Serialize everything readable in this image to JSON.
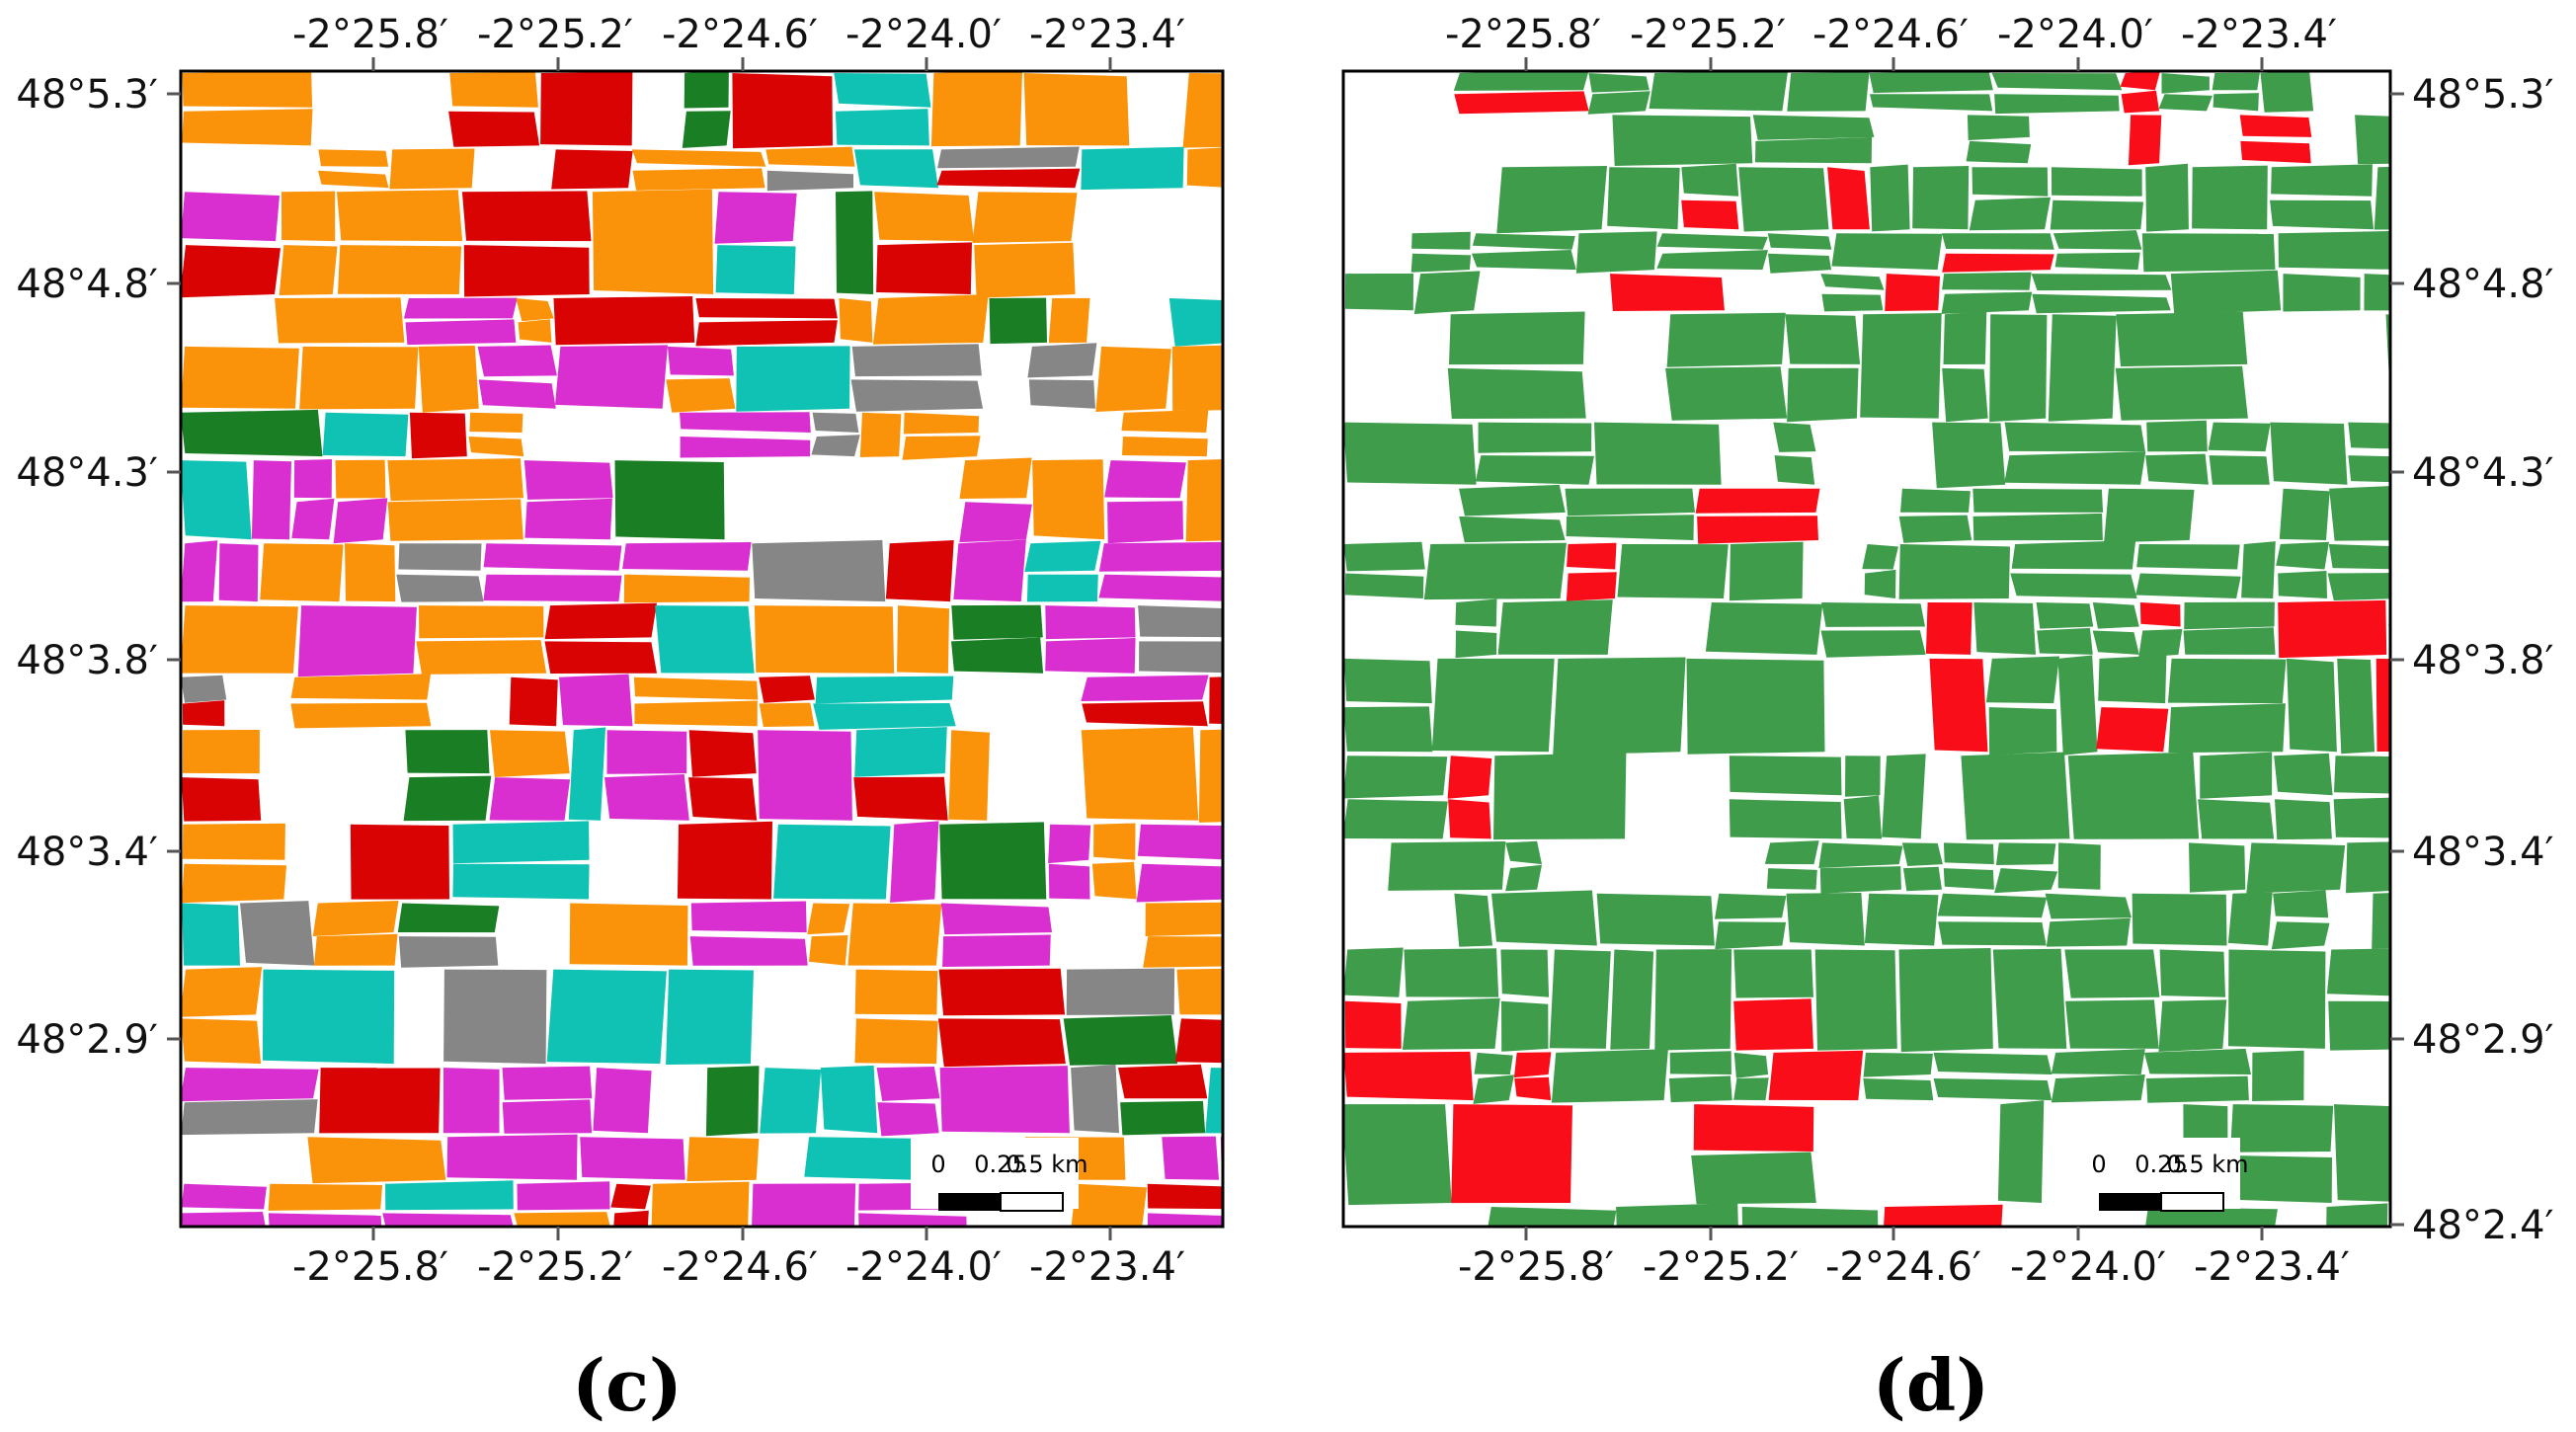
{
  "figure": {
    "palette_c": [
      "#d92ed0",
      "#fa930a",
      "#d90303",
      "#0fc2b4",
      "#868686",
      "#1a7f24"
    ],
    "palette_d": [
      "#3e9c4b",
      "#f80d18"
    ],
    "background_color": "#ffffff"
  },
  "panels": [
    {
      "id": "c",
      "caption": "(c)",
      "top_axis_labels": [
        "-2°25.8′",
        "-2°25.2′",
        "-2°24.6′",
        "-2°24.0′",
        "-2°23.4′"
      ],
      "bottom_axis_labels": [
        "-2°25.8′",
        "-2°25.2′",
        "-2°24.6′",
        "-2°24.0′",
        "-2°23.4′"
      ],
      "left_axis_labels": [
        "48°5.3′",
        "48°4.8′",
        "48°4.3′",
        "48°3.8′",
        "48°3.4′",
        "48°2.9′"
      ],
      "scale_bar": {
        "labels": [
          "0",
          "0.25",
          "0.5 km"
        ]
      }
    },
    {
      "id": "d",
      "caption": "(d)",
      "top_axis_labels": [
        "-2°25.8′",
        "-2°25.2′",
        "-2°24.6′",
        "-2°24.0′",
        "-2°23.4′"
      ],
      "bottom_axis_labels": [
        "-2°25.8′",
        "-2°25.2′",
        "-2°24.6′",
        "-2°24.0′",
        "-2°23.4′"
      ],
      "right_axis_labels": [
        "48°5.3′",
        "48°4.8′",
        "48°4.3′",
        "48°3.8′",
        "48°3.4′",
        "48°2.9′",
        "48°2.4′"
      ],
      "scale_bar": {
        "labels": [
          "0",
          "0.25",
          "0.5 km"
        ]
      }
    }
  ]
}
